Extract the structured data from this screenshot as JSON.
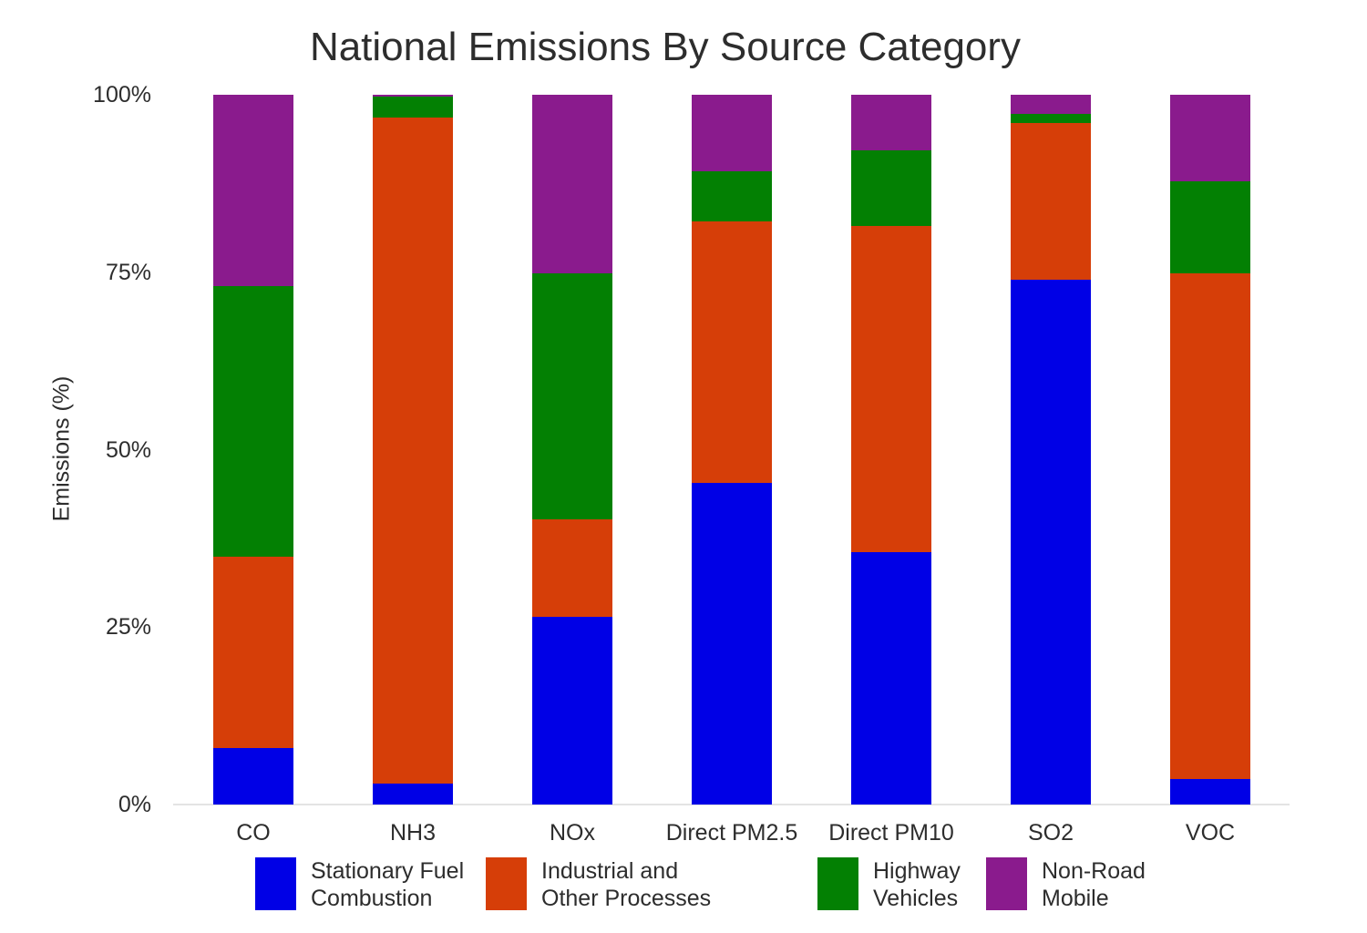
{
  "chart_data": {
    "type": "bar",
    "stacked": true,
    "normalized_percent": true,
    "title": "National Emissions By Source Category",
    "xlabel": "",
    "ylabel": "Emissions (%)",
    "ylim": [
      0,
      100
    ],
    "grid": false,
    "legend_position": "bottom",
    "axis_line_color": "#e4e4e4",
    "text_color": "#2d2d2d",
    "background_color": "#ffffff",
    "yticks": [
      {
        "value": 0,
        "label": "0%"
      },
      {
        "value": 25,
        "label": "25%"
      },
      {
        "value": 50,
        "label": "50%"
      },
      {
        "value": 75,
        "label": "75%"
      },
      {
        "value": 100,
        "label": "100%"
      }
    ],
    "categories": [
      "CO",
      "NH3",
      "NOx",
      "Direct PM2.5",
      "Direct PM10",
      "SO2",
      "VOC"
    ],
    "series": [
      {
        "name": "Stationary Fuel Combustion",
        "legend_lines": [
          "Stationary Fuel",
          "Combustion"
        ],
        "color": "#0000e6",
        "values": [
          8.0,
          3.0,
          26.4,
          45.3,
          35.6,
          73.9,
          3.6
        ]
      },
      {
        "name": "Industrial and Other Processes",
        "legend_lines": [
          "Industrial and",
          "Other Processes"
        ],
        "color": "#d63e08",
        "values": [
          26.9,
          93.8,
          13.8,
          36.9,
          45.9,
          22.1,
          71.2
        ]
      },
      {
        "name": "Highway Vehicles",
        "legend_lines": [
          "Highway",
          "Vehicles"
        ],
        "color": "#038003",
        "values": [
          38.1,
          2.9,
          34.6,
          7.0,
          10.7,
          1.3,
          13.0
        ]
      },
      {
        "name": "Non-Road Mobile",
        "legend_lines": [
          "Non-Road",
          "Mobile"
        ],
        "color": "#8a1b8d",
        "values": [
          27.0,
          0.3,
          25.2,
          10.8,
          7.8,
          2.7,
          12.2
        ]
      }
    ]
  }
}
